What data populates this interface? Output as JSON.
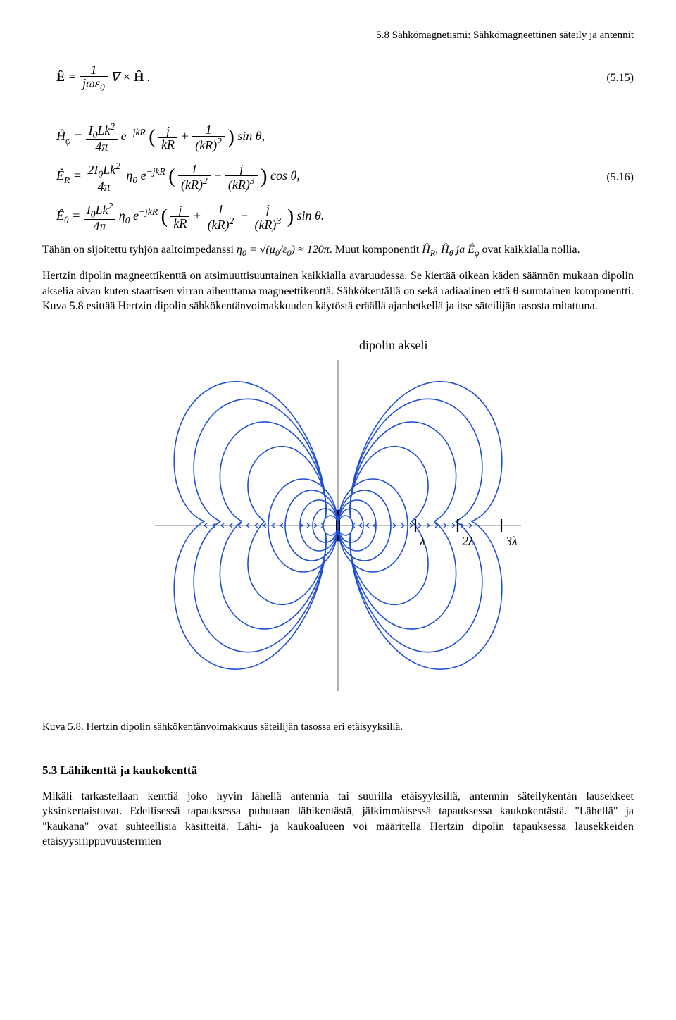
{
  "header": "5.8 Sähkömagnetismi: Sähkömagneettinen säteily ja antennit",
  "eq515": {
    "body": "Ê = (1 / jωε₀) ∇ × Ĥ .",
    "num": "(5.15)"
  },
  "eq516": {
    "line1": "Ĥ_φ = (I₀Lk² / 4π) e^{−jkR} ( j/(kR) + 1/(kR)² ) sin θ,",
    "line2": "Ê_R = (2I₀Lk² / 4π) η₀ e^{−jkR} ( 1/(kR)² + j/(kR)³ ) cos θ,",
    "line3": "Ê_θ = (I₀Lk² / 4π) η₀ e^{−jkR} ( j/(kR) + 1/(kR)² − j/(kR)³ ) sin θ.",
    "num": "(5.16)"
  },
  "para1_a": "Tähän on sijoitettu tyhjön aaltoimpedanssi ",
  "para1_math": "η₀ = √(μ₀/ε₀) ≈ 120π",
  "para1_b": ". Muut komponentit ",
  "para1_math2": "Ĥ_R, Ĥ_θ ja Ê_φ",
  "para1_c": " ovat kaikkialla nollia.",
  "para2": "Hertzin dipolin magneettikenttä on atsimuuttisuuntainen kaikkialla avaruudessa. Se kiertää oikean käden säännön mukaan dipolin akselia aivan kuten staattisen virran aiheuttama magneettikenttä. Sähkökentällä on sekä radiaalinen että θ-suuntainen komponentti. Kuva 5.8 esittää Hertzin dipolin sähkökentänvoimakkuuden käytöstä eräällä ajanhetkellä ja itse säteilijän tasosta mitattuna.",
  "fig": {
    "axis_label": "dipolin akseli",
    "ticks": [
      "λ",
      "2λ",
      "3λ"
    ],
    "caption": "Kuva 5.8. Hertzin dipolin sähkökentänvoimakkuus säteilijän tasossa eri etäisyyksillä.",
    "line_color": "#1f4fd6",
    "line_width": 1.6,
    "axis_color": "#000000",
    "background": "#ffffff"
  },
  "section53": "5.3 Lähikenttä ja kaukokenttä",
  "para3": "Mikäli tarkastellaan kenttiä joko hyvin lähellä antennia tai suurilla etäisyyksillä, antennin säteilykentän lausekkeet yksinkertaistuvat. Edellisessä tapauksessa puhutaan lähikentästä, jälkimmäisessä tapauksessa kaukokentästä. \"Lähellä\" ja \"kaukana\" ovat suhteellisia käsitteitä. Lähi- ja kaukoalueen voi määritellä Hertzin dipolin tapauksessa lausekkeiden etäisyysriippuvuustermien"
}
